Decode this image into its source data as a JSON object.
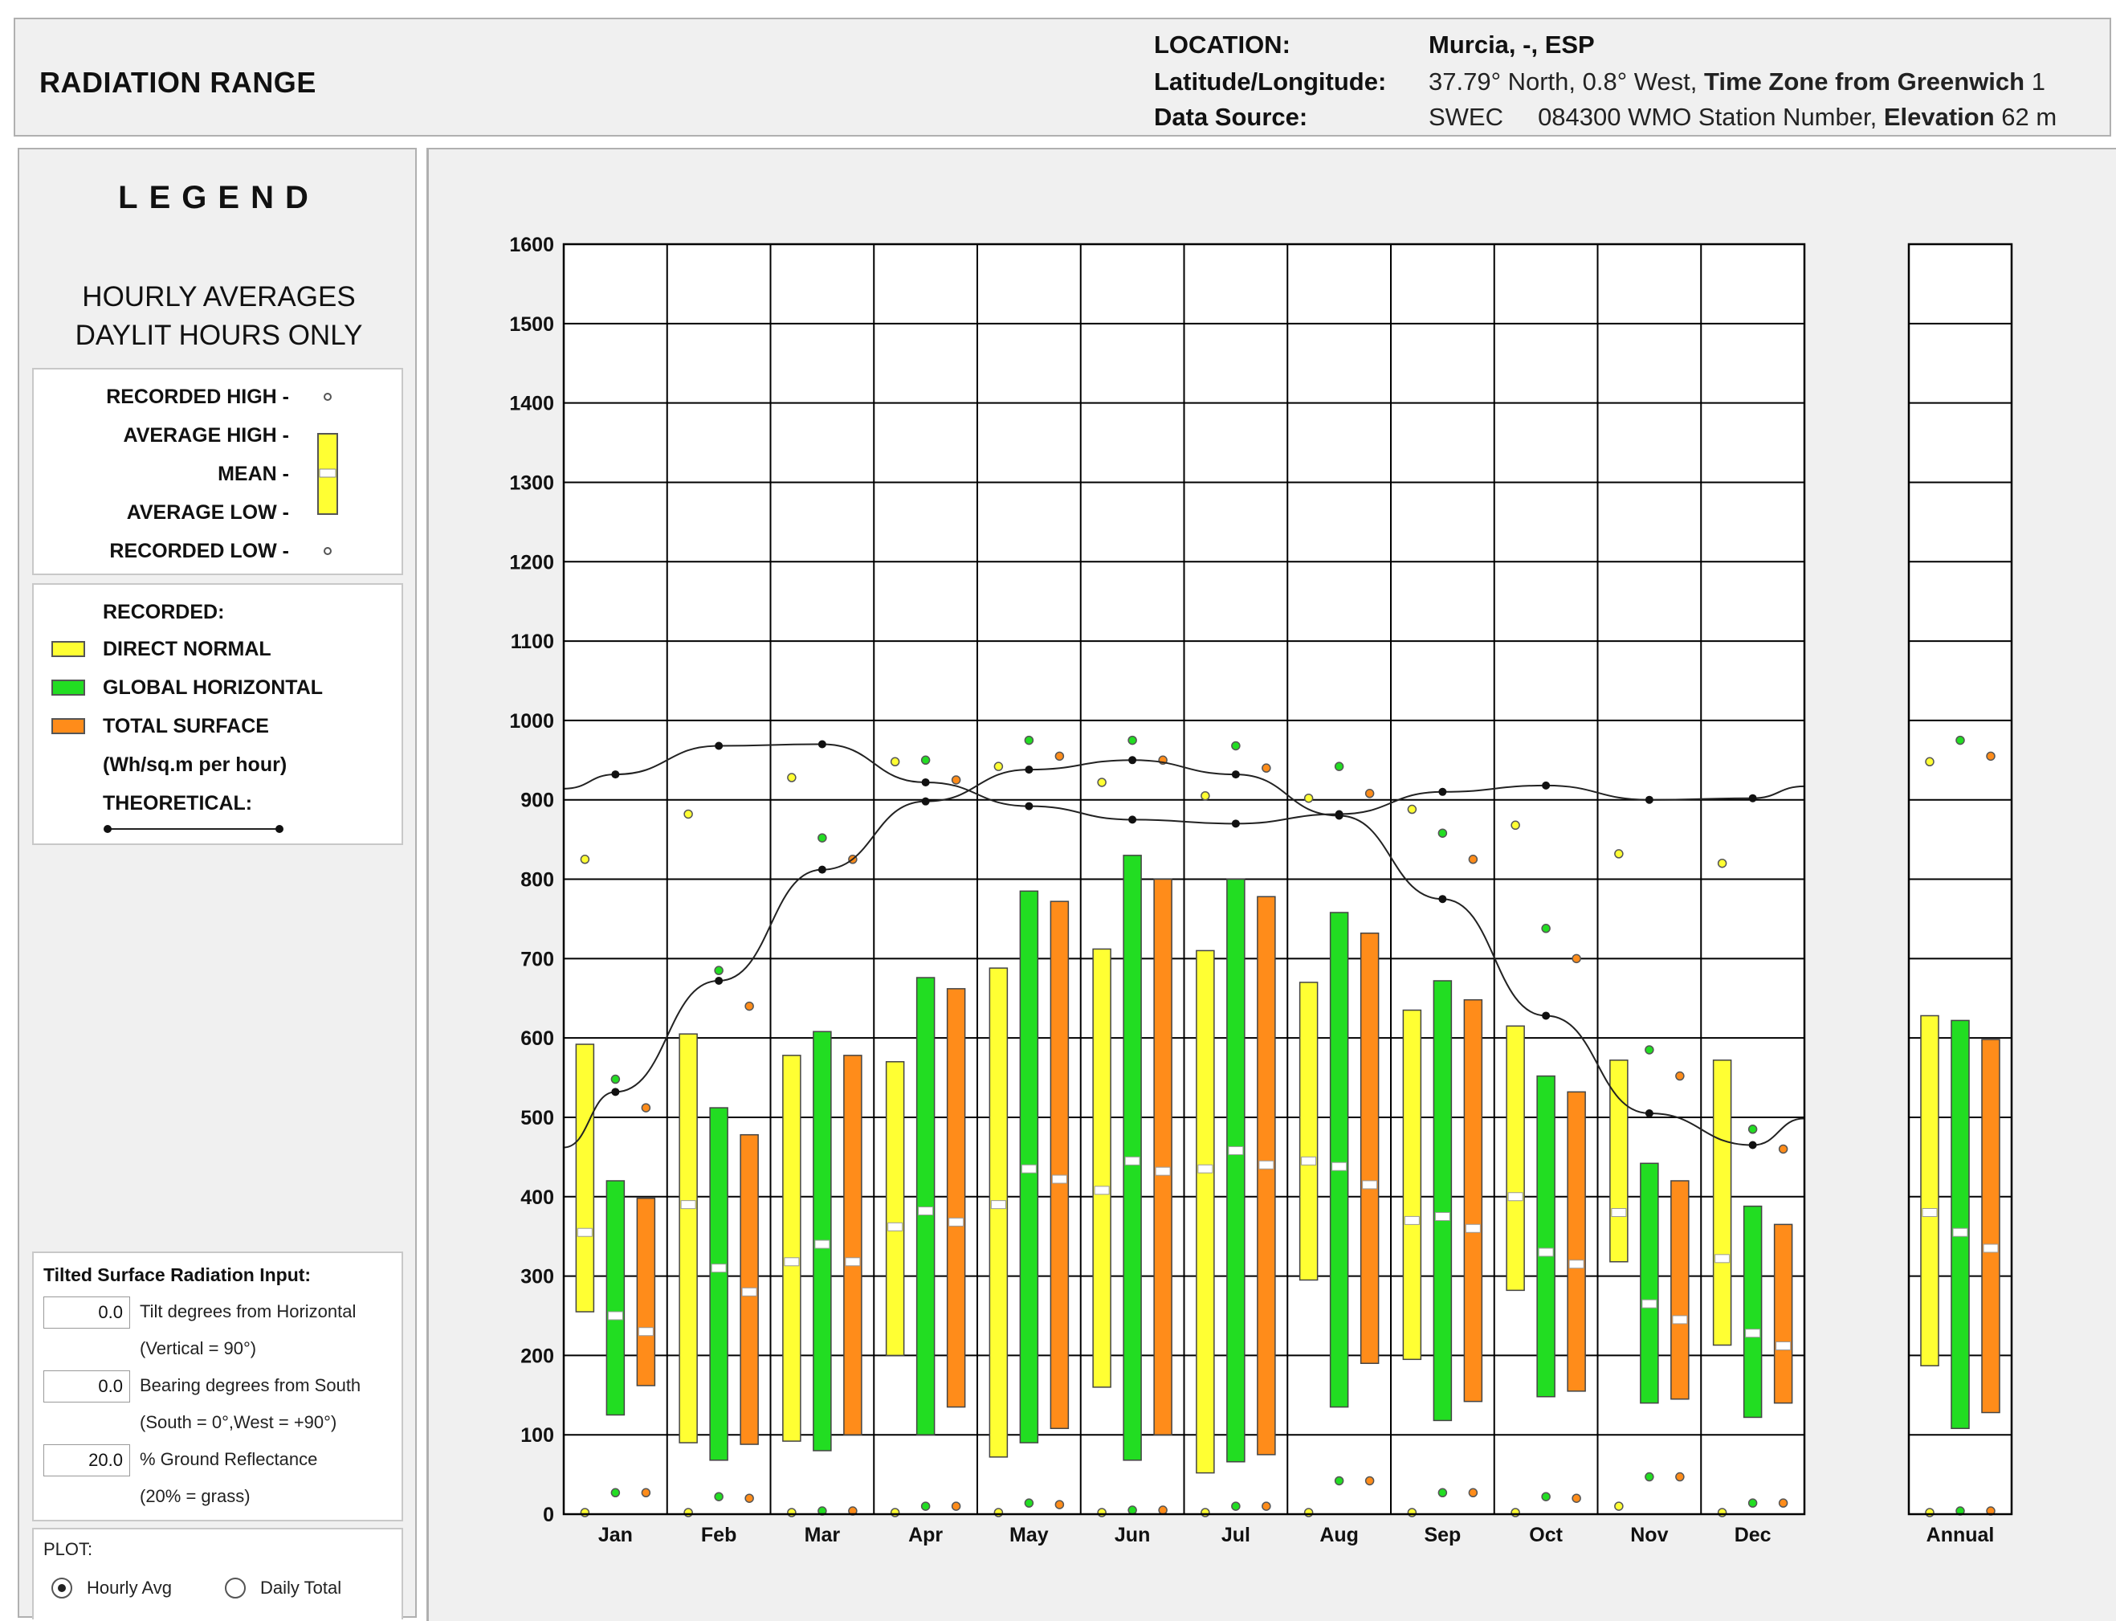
{
  "header": {
    "title": "RADIATION RANGE",
    "location_label": "LOCATION:",
    "location_value": "Murcia, -, ESP",
    "latlon_label": "Latitude/Longitude:",
    "latlon_value": "37.79° North, 0.8° West,",
    "timezone_label": "Time Zone from Greenwich",
    "timezone_value": "1",
    "source_label": "Data Source:",
    "source_value": "SWEC     084300 WMO Station Number,",
    "elevation_label": "Elevation",
    "elevation_value": "62 m"
  },
  "legend": {
    "title": "LEGEND",
    "subtitle_1": "HOURLY AVERAGES",
    "subtitle_2": "DAYLIT HOURS ONLY",
    "recorded_high": "RECORDED HIGH -",
    "average_high": "AVERAGE HIGH -",
    "mean": "MEAN -",
    "average_low": "AVERAGE LOW -",
    "recorded_low": "RECORDED LOW -",
    "recorded_heading": "RECORDED:",
    "direct_normal": "DIRECT NORMAL",
    "global_horizontal": "GLOBAL HORIZONTAL",
    "total_surface": "TOTAL SURFACE",
    "units": "(Wh/sq.m per hour)",
    "theoretical": "THEORETICAL:"
  },
  "tilt": {
    "heading": "Tilted Surface Radiation Input:",
    "tilt_value": "0.0",
    "tilt_label": "Tilt degrees from Horizontal",
    "tilt_note": "(Vertical = 90°)",
    "bearing_value": "0.0",
    "bearing_label": "Bearing degrees from South",
    "bearing_note": "(South = 0°,West = +90°)",
    "reflect_value": "20.0",
    "reflect_label": "% Ground Reflectance",
    "reflect_note": "(20% = grass)"
  },
  "plot": {
    "heading": "PLOT:",
    "option_hourly": "Hourly Avg",
    "option_daily": "Daily Total",
    "selected": "Hourly Avg"
  },
  "colors": {
    "direct": "#ffff33",
    "global": "#22dd22",
    "total": "#ff8c1a",
    "panel": "#f0f0f0",
    "grid": "#000000"
  },
  "chart_data": {
    "type": "bar",
    "subtype": "range-box",
    "ylim": [
      0,
      1600
    ],
    "yticks": [
      "0",
      "100",
      "200",
      "300",
      "400",
      "500",
      "600",
      "700",
      "800",
      "900",
      "1000",
      "1100",
      "1200",
      "1300",
      "1400",
      "1500",
      "1600"
    ],
    "categories": [
      "Jan",
      "Feb",
      "Mar",
      "Apr",
      "May",
      "Jun",
      "Jul",
      "Aug",
      "Sep",
      "Oct",
      "Nov",
      "Dec"
    ],
    "annual_label": "Annual",
    "grid": true,
    "series": [
      {
        "name": "DIRECT NORMAL",
        "key": "direct",
        "avg_low": [
          255,
          90,
          92,
          200,
          72,
          160,
          52,
          295,
          195,
          282,
          318,
          213
        ],
        "avg_high": [
          592,
          605,
          578,
          570,
          688,
          712,
          710,
          670,
          635,
          615,
          572,
          572
        ],
        "mean": [
          355,
          390,
          318,
          362,
          390,
          408,
          435,
          445,
          370,
          400,
          380,
          322
        ],
        "rec_high": [
          825,
          882,
          928,
          948,
          942,
          922,
          905,
          902,
          888,
          868,
          832,
          820
        ],
        "rec_low": [
          0,
          0,
          0,
          0,
          0,
          0,
          0,
          0,
          0,
          0,
          8,
          0
        ],
        "annual": {
          "avg_low": 187,
          "avg_high": 628,
          "mean": 380,
          "rec_high": 948,
          "rec_low": 0
        }
      },
      {
        "name": "GLOBAL HORIZONTAL",
        "key": "global",
        "avg_low": [
          125,
          68,
          80,
          100,
          90,
          68,
          66,
          135,
          118,
          148,
          140,
          122
        ],
        "avg_high": [
          420,
          512,
          608,
          676,
          785,
          830,
          800,
          758,
          672,
          552,
          442,
          388
        ],
        "mean": [
          250,
          310,
          340,
          382,
          435,
          445,
          458,
          438,
          375,
          330,
          265,
          228
        ],
        "rec_high": [
          548,
          685,
          852,
          950,
          975,
          975,
          968,
          942,
          858,
          738,
          585,
          485
        ],
        "rec_low": [
          25,
          20,
          2,
          8,
          12,
          3,
          8,
          40,
          25,
          20,
          45,
          12
        ],
        "annual": {
          "avg_low": 108,
          "avg_high": 622,
          "mean": 355,
          "rec_high": 975,
          "rec_low": 2
        }
      },
      {
        "name": "TOTAL SURFACE",
        "key": "total",
        "avg_low": [
          162,
          88,
          100,
          135,
          108,
          100,
          75,
          190,
          142,
          155,
          145,
          140
        ],
        "avg_high": [
          398,
          478,
          578,
          662,
          772,
          800,
          778,
          732,
          648,
          532,
          420,
          365
        ],
        "mean": [
          230,
          280,
          318,
          368,
          422,
          432,
          440,
          415,
          360,
          315,
          245,
          212
        ],
        "rec_high": [
          512,
          640,
          825,
          925,
          955,
          950,
          940,
          908,
          825,
          700,
          552,
          460
        ],
        "rec_low": [
          25,
          18,
          2,
          8,
          10,
          3,
          8,
          40,
          25,
          18,
          45,
          12
        ],
        "annual": {
          "avg_low": 128,
          "avg_high": 598,
          "mean": 335,
          "rec_high": 955,
          "rec_low": 2
        }
      }
    ],
    "theoretical": [
      {
        "name": "THEORETICAL (global)",
        "values": [
          532,
          672,
          812,
          898,
          938,
          950,
          932,
          880,
          775,
          628,
          505,
          465
        ]
      },
      {
        "name": "THEORETICAL (direct)",
        "values": [
          932,
          968,
          970,
          922,
          892,
          875,
          870,
          882,
          910,
          918,
          900,
          902
        ]
      }
    ]
  }
}
